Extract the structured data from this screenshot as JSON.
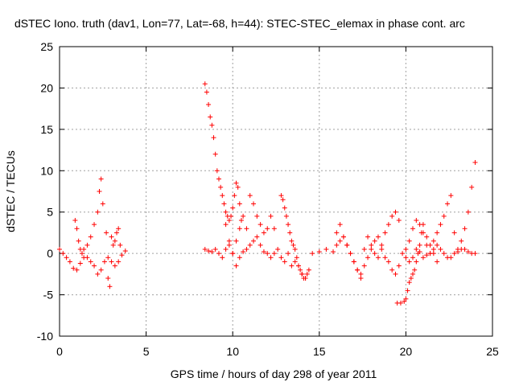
{
  "chart_data": {
    "type": "scatter",
    "title": "dSTEC Iono. truth (dav1, Lon=77, Lat=-68, h=44): STEC-STEC_elemax in phase cont. arc",
    "xlabel": "GPS time / hours of day 298 of year 2011",
    "ylabel": "dSTEC  / TECUs",
    "xlim": [
      0,
      25
    ],
    "ylim": [
      -10,
      25
    ],
    "xticks": [
      "0",
      "5",
      "10",
      "15",
      "20",
      "25"
    ],
    "yticks": [
      "-10",
      "-5",
      "0",
      "5",
      "10",
      "15",
      "20",
      "25"
    ],
    "grid": true,
    "marker": "plus",
    "color": "#ff0000",
    "series": [
      {
        "x": [
          0.0,
          0.2,
          0.4,
          0.6,
          0.8,
          1.0,
          1.2,
          1.4,
          1.6,
          1.8,
          2.0,
          2.2,
          2.4,
          2.6,
          2.8,
          3.0,
          3.2,
          3.4,
          3.6,
          3.8
        ],
        "y": [
          0.5,
          0.0,
          -0.5,
          -1.0,
          -1.8,
          -2.0,
          -1.2,
          -0.5,
          -0.5,
          -1.0,
          -1.5,
          -2.5,
          -2.0,
          -1.0,
          -0.5,
          -1.0,
          -1.5,
          -1.0,
          -0.2,
          0.3
        ]
      },
      {
        "x": [
          0.9,
          1.0,
          1.1,
          1.2,
          1.3,
          1.4,
          1.6,
          1.8,
          2.0,
          2.2,
          2.3,
          2.4,
          2.5,
          2.7,
          2.8,
          2.9,
          3.0,
          3.1,
          3.2,
          3.3,
          3.4,
          3.5
        ],
        "y": [
          4.0,
          3.0,
          1.5,
          0.5,
          0.0,
          0.5,
          1.0,
          2.0,
          3.5,
          5.0,
          7.5,
          9.0,
          6.0,
          2.5,
          -3.0,
          -4.0,
          2.0,
          1.0,
          1.5,
          2.5,
          3.0,
          1.0
        ]
      },
      {
        "x": [
          8.4,
          8.5,
          8.6,
          8.7,
          8.8,
          8.9,
          9.0,
          9.1,
          9.2,
          9.3,
          9.4,
          9.5,
          9.6,
          9.7,
          9.8,
          9.9,
          10.0,
          10.1,
          10.2,
          10.3,
          10.4,
          10.5
        ],
        "y": [
          20.5,
          19.5,
          18.0,
          16.5,
          15.5,
          14.0,
          12.0,
          10.0,
          9.0,
          8.0,
          7.0,
          6.0,
          5.0,
          4.5,
          4.0,
          4.5,
          5.5,
          7.0,
          8.5,
          8.0,
          6.0,
          4.0
        ]
      },
      {
        "x": [
          8.4,
          8.6,
          8.8,
          9.0,
          9.2,
          9.4,
          9.6,
          9.8,
          10.0,
          10.2,
          10.4,
          10.6,
          10.8,
          11.0,
          11.2,
          11.4,
          11.6,
          11.8,
          12.0,
          12.2,
          12.4,
          12.6,
          12.8,
          13.0,
          13.2,
          13.4,
          13.6,
          13.8,
          14.0,
          14.2,
          14.4
        ],
        "y": [
          0.5,
          0.3,
          0.2,
          0.5,
          0.0,
          -0.5,
          0.5,
          1.0,
          0.0,
          -1.5,
          -0.5,
          0.2,
          0.5,
          1.0,
          1.5,
          2.0,
          1.0,
          0.2,
          0.0,
          -0.5,
          0.0,
          0.5,
          -0.5,
          -1.0,
          0.0,
          -1.5,
          -1.0,
          -1.5,
          -2.5,
          -3.0,
          -2.0
        ]
      },
      {
        "x": [
          9.6,
          9.8,
          10.0,
          10.2,
          10.4,
          10.6,
          10.8,
          11.0,
          11.2,
          11.4,
          11.6,
          11.8,
          12.0,
          12.2,
          12.4
        ],
        "y": [
          3.5,
          1.5,
          0.0,
          1.5,
          3.0,
          4.5,
          3.0,
          7.0,
          6.0,
          4.5,
          3.5,
          2.5,
          3.0,
          4.5,
          3.0
        ]
      },
      {
        "x": [
          12.8,
          12.9,
          13.0,
          13.1,
          13.2,
          13.3,
          13.4,
          13.5,
          13.6,
          13.7,
          13.8,
          13.9,
          14.0,
          14.1,
          14.2,
          14.3
        ],
        "y": [
          7.0,
          6.5,
          5.5,
          4.5,
          3.5,
          2.5,
          1.5,
          1.0,
          0.5,
          -0.5,
          -1.5,
          -2.0,
          -2.5,
          -3.0,
          -3.0,
          -2.5
        ]
      },
      {
        "x": [
          14.6,
          15.0,
          15.4,
          15.8,
          16.0,
          16.2,
          16.4,
          16.6,
          16.8,
          17.0,
          17.2,
          17.4,
          17.6,
          17.8,
          18.0,
          18.2,
          18.4,
          18.6,
          18.8,
          19.0,
          19.2,
          19.4,
          19.6,
          19.8,
          20.0,
          20.2,
          20.4,
          20.6,
          20.8,
          21.0,
          21.2,
          21.4,
          21.6,
          21.8,
          22.0,
          22.2,
          22.4,
          22.6,
          22.8,
          23.0,
          23.2,
          23.4,
          23.6,
          23.8,
          24.0
        ],
        "y": [
          0.0,
          0.2,
          0.5,
          0.2,
          1.0,
          1.5,
          2.0,
          1.0,
          0.0,
          -1.0,
          -2.0,
          -2.5,
          -1.5,
          -0.5,
          0.5,
          1.5,
          2.0,
          1.0,
          -0.5,
          -1.0,
          -2.0,
          -2.5,
          -1.5,
          0.0,
          -0.5,
          -1.0,
          -0.5,
          0.5,
          0.2,
          -0.5,
          -0.2,
          0.0,
          0.5,
          1.0,
          0.5,
          0.0,
          -0.5,
          -0.5,
          0.0,
          0.2,
          0.5,
          0.5,
          0.2,
          0.0,
          0.0
        ]
      },
      {
        "x": [
          16.0,
          16.2,
          16.4,
          16.6,
          16.8,
          17.0,
          17.2,
          17.4,
          17.6,
          17.8,
          18.0,
          18.2,
          18.4,
          18.6,
          18.8,
          19.0,
          19.2,
          19.4,
          19.6
        ],
        "y": [
          2.5,
          3.5,
          2.0,
          1.0,
          0.0,
          -1.0,
          -2.0,
          -3.0,
          0.5,
          2.0,
          1.0,
          0.0,
          -0.5,
          0.5,
          2.5,
          3.5,
          4.5,
          5.0,
          4.0
        ]
      },
      {
        "x": [
          19.5,
          19.7,
          19.9,
          20.0,
          20.1,
          20.2,
          20.3,
          20.4,
          20.5,
          20.6,
          20.7,
          20.8,
          20.9,
          21.0,
          21.2,
          21.4,
          21.6,
          21.8
        ],
        "y": [
          -6.0,
          -6.0,
          -5.8,
          -5.5,
          -4.5,
          -3.5,
          -3.0,
          -2.5,
          -2.0,
          -1.0,
          0.0,
          1.0,
          2.5,
          3.5,
          2.0,
          1.0,
          0.0,
          -1.0
        ]
      },
      {
        "x": [
          20.0,
          20.2,
          20.4,
          20.6,
          20.8,
          21.0,
          21.2,
          21.4,
          21.6,
          21.8,
          22.0,
          22.2,
          22.4,
          22.6,
          22.8,
          23.0,
          23.2,
          23.4,
          23.6,
          23.8,
          24.0
        ],
        "y": [
          0.5,
          1.5,
          3.0,
          4.0,
          3.5,
          2.5,
          1.0,
          0.0,
          1.5,
          2.5,
          3.5,
          4.5,
          6.0,
          7.0,
          2.5,
          0.5,
          1.5,
          3.0,
          5.0,
          8.0,
          11.0
        ]
      }
    ]
  }
}
